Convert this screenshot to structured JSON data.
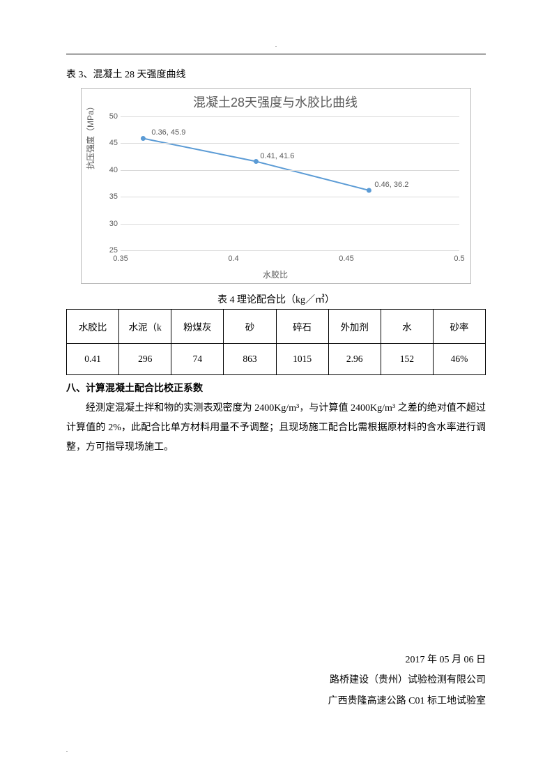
{
  "header_dot": ".",
  "caption3": "表 3、混凝土 28 天强度曲线",
  "chart": {
    "type": "line",
    "title": "混凝土28天强度与水胶比曲线",
    "ylabel": "抗压强度（MPa）",
    "xlabel": "水胶比",
    "xlim": [
      0.35,
      0.5
    ],
    "ylim": [
      25,
      50
    ],
    "xticks": [
      0.35,
      0.4,
      0.45,
      0.5
    ],
    "yticks": [
      25,
      30,
      35,
      40,
      45,
      50
    ],
    "series_x": [
      0.36,
      0.41,
      0.46
    ],
    "series_y": [
      45.9,
      41.6,
      36.2
    ],
    "data_labels": [
      "0.36, 45.9",
      "0.41, 41.6",
      "0.46, 36.2"
    ],
    "line_color": "#5b9bd5",
    "marker_color": "#5b9bd5",
    "marker_size": 5,
    "line_width": 2,
    "grid_color": "#d9d9d9",
    "background": "#ffffff",
    "text_color": "#5b5b5b",
    "chart_fontsize": 11,
    "title_fontsize": 18
  },
  "table4_caption": "表 4 理论配合比（kg／㎥）",
  "table4": {
    "columns": [
      "水胶比",
      "水泥（k",
      "粉煤灰",
      "砂",
      "碎石",
      "外加剂",
      "水",
      "砂率"
    ],
    "rows": [
      [
        "0.41",
        "296",
        "74",
        "863",
        "1015",
        "2.96",
        "152",
        "46%"
      ]
    ]
  },
  "section8_head": "八、计算混凝土配合比校正系数",
  "section8_body": "经测定混凝土拌和物的实测表观密度为 2400Kg/m³，与计算值 2400Kg/m³ 之差的绝对值不超过计算值的 2%，此配合比单方材料用量不予调整；且现场施工配合比需根据原材料的含水率进行调整，方可指导现场施工。",
  "footer": {
    "date": "2017 年 05 月 06 日",
    "org1": "路桥建设（贵州）试验检测有限公司",
    "org2": "广西贵隆高速公路 C01 标工地试验室"
  },
  "footer_dot": "."
}
